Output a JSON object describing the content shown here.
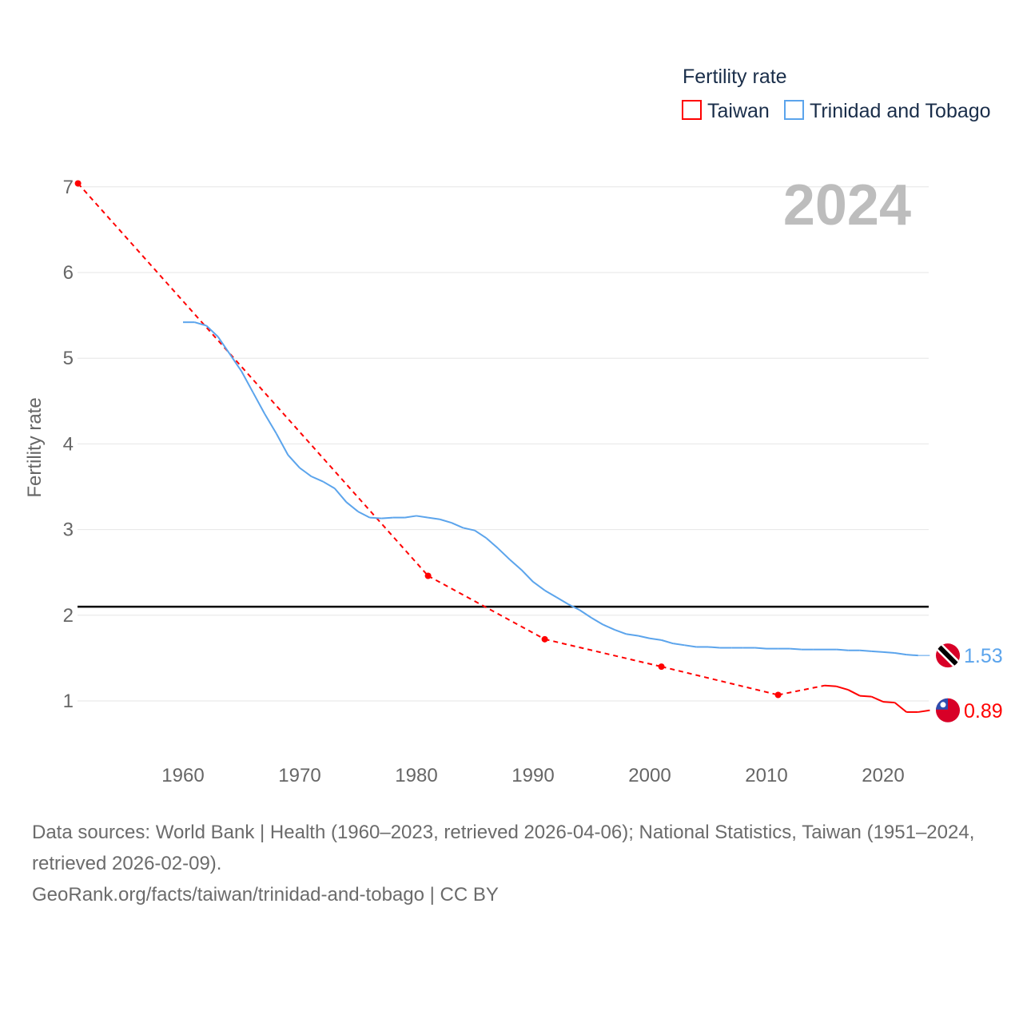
{
  "chart_data": {
    "type": "line",
    "legend_title": "Fertility rate",
    "legend_position": "top-right",
    "ylabel": "Fertility rate",
    "xlabel": "",
    "year_label": "2024",
    "xlim": [
      1951,
      2024
    ],
    "ylim": [
      0.4,
      7.05
    ],
    "x_ticks": [
      1960,
      1970,
      1980,
      1990,
      2000,
      2010,
      2020
    ],
    "y_ticks": [
      1,
      2,
      3,
      4,
      5,
      6,
      7
    ],
    "grid": true,
    "reference_line": {
      "value": 2.1,
      "color": "#000000"
    },
    "series": [
      {
        "name": "Taiwan",
        "color": "#ff0000",
        "end_label": "0.89",
        "flag": "taiwan-flag",
        "x": [
          1951,
          1981,
          1991,
          2001,
          2011,
          2015,
          2016,
          2017,
          2018,
          2019,
          2020,
          2021,
          2022,
          2023,
          2024
        ],
        "y": [
          7.04,
          2.46,
          1.72,
          1.4,
          1.07,
          1.18,
          1.17,
          1.13,
          1.06,
          1.05,
          0.99,
          0.98,
          0.87,
          0.87,
          0.89
        ]
      },
      {
        "name": "Trinidad and Tobago",
        "color": "#5ba4ec",
        "end_label": "1.53",
        "flag": "trinidad-flag",
        "x": [
          1960,
          1961,
          1962,
          1963,
          1964,
          1965,
          1966,
          1967,
          1968,
          1969,
          1970,
          1971,
          1972,
          1973,
          1974,
          1975,
          1976,
          1977,
          1978,
          1979,
          1980,
          1981,
          1982,
          1983,
          1984,
          1985,
          1986,
          1987,
          1988,
          1989,
          1990,
          1991,
          1992,
          1993,
          1994,
          1995,
          1996,
          1997,
          1998,
          1999,
          2000,
          2001,
          2002,
          2003,
          2004,
          2005,
          2006,
          2007,
          2008,
          2009,
          2010,
          2011,
          2012,
          2013,
          2014,
          2015,
          2016,
          2017,
          2018,
          2019,
          2020,
          2021,
          2022,
          2023
        ],
        "y": [
          5.42,
          5.42,
          5.38,
          5.25,
          5.05,
          4.85,
          4.6,
          4.35,
          4.12,
          3.87,
          3.72,
          3.62,
          3.56,
          3.48,
          3.32,
          3.21,
          3.14,
          3.13,
          3.14,
          3.14,
          3.16,
          3.14,
          3.12,
          3.08,
          3.02,
          2.99,
          2.9,
          2.78,
          2.65,
          2.53,
          2.39,
          2.29,
          2.21,
          2.13,
          2.06,
          1.97,
          1.89,
          1.83,
          1.78,
          1.76,
          1.73,
          1.71,
          1.67,
          1.65,
          1.63,
          1.63,
          1.62,
          1.62,
          1.62,
          1.62,
          1.61,
          1.61,
          1.61,
          1.6,
          1.6,
          1.6,
          1.6,
          1.59,
          1.59,
          1.58,
          1.57,
          1.56,
          1.54,
          1.53
        ]
      }
    ]
  },
  "sources": {
    "line1": "Data sources: World Bank | Health (1960–2023, retrieved 2026-04-06); National Statistics, Taiwan (1951–2024, retrieved 2026-02-09).",
    "line2": "GeoRank.org/facts/taiwan/trinidad-and-tobago | CC BY"
  }
}
